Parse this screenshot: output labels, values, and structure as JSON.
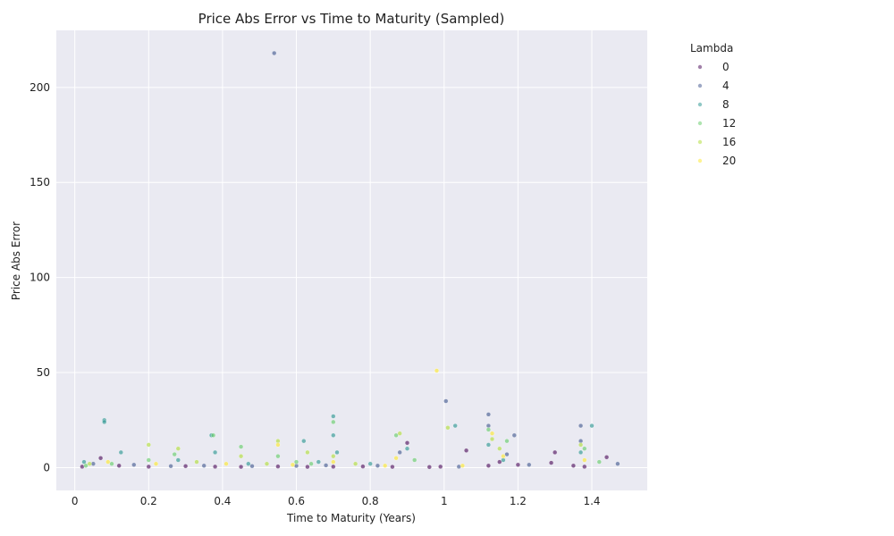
{
  "chart_data": {
    "type": "scatter",
    "title": "Price Abs Error vs Time to Maturity (Sampled)",
    "xlabel": "Time to Maturity (Years)",
    "ylabel": "Price Abs Error",
    "xlim": [
      -0.05,
      1.55
    ],
    "ylim": [
      -12,
      230
    ],
    "x_ticks": [
      0,
      0.2,
      0.4,
      0.6,
      0.8,
      1.0,
      1.2,
      1.4
    ],
    "x_tick_labels": [
      "0",
      "0.2",
      "0.4",
      "0.6",
      "0.8",
      "1",
      "1.2",
      "1.4"
    ],
    "y_ticks": [
      0,
      50,
      100,
      150,
      200
    ],
    "y_tick_labels": [
      "0",
      "50",
      "100",
      "150",
      "200"
    ],
    "grid": true,
    "legend": {
      "title": "Lambda",
      "placement": "outside-right",
      "entries": [
        {
          "label": "0",
          "color": "#440154"
        },
        {
          "label": "4",
          "color": "#3b528b"
        },
        {
          "label": "8",
          "color": "#21918c"
        },
        {
          "label": "12",
          "color": "#5ec962"
        },
        {
          "label": "16",
          "color": "#addc30"
        },
        {
          "label": "20",
          "color": "#fde725"
        }
      ]
    },
    "series": [
      {
        "lambda": 0,
        "color": "#440154",
        "points": [
          [
            0.02,
            0.5
          ],
          [
            0.07,
            5
          ],
          [
            0.12,
            1
          ],
          [
            0.2,
            0.5
          ],
          [
            0.3,
            0.8
          ],
          [
            0.38,
            0.5
          ],
          [
            0.45,
            0.4
          ],
          [
            0.55,
            0.6
          ],
          [
            0.63,
            0.4
          ],
          [
            0.7,
            0.5
          ],
          [
            0.78,
            0.6
          ],
          [
            0.86,
            0.4
          ],
          [
            0.9,
            13
          ],
          [
            0.96,
            0.3
          ],
          [
            0.99,
            0.5
          ],
          [
            1.06,
            9
          ],
          [
            1.12,
            1
          ],
          [
            1.15,
            3
          ],
          [
            1.2,
            1.5
          ],
          [
            1.29,
            2.5
          ],
          [
            1.3,
            8
          ],
          [
            1.35,
            1
          ],
          [
            1.38,
            0.5
          ],
          [
            1.44,
            5.5
          ]
        ]
      },
      {
        "lambda": 4,
        "color": "#3b528b",
        "points": [
          [
            0.54,
            218
          ],
          [
            1.005,
            35
          ],
          [
            0.05,
            2
          ],
          [
            0.16,
            1.5
          ],
          [
            0.26,
            0.8
          ],
          [
            0.35,
            1
          ],
          [
            0.48,
            0.8
          ],
          [
            0.6,
            0.9
          ],
          [
            0.68,
            1.2
          ],
          [
            0.82,
            1
          ],
          [
            0.88,
            8
          ],
          [
            1.04,
            0.5
          ],
          [
            1.12,
            28
          ],
          [
            1.12,
            22
          ],
          [
            1.17,
            7
          ],
          [
            1.19,
            17
          ],
          [
            1.23,
            1.5
          ],
          [
            1.37,
            22
          ],
          [
            1.37,
            14
          ],
          [
            1.47,
            2
          ]
        ]
      },
      {
        "lambda": 8,
        "color": "#21918c",
        "points": [
          [
            0.08,
            25
          ],
          [
            0.08,
            24
          ],
          [
            0.125,
            8
          ],
          [
            0.37,
            17
          ],
          [
            0.38,
            8
          ],
          [
            0.62,
            14
          ],
          [
            0.7,
            27
          ],
          [
            0.7,
            17
          ],
          [
            0.71,
            8
          ],
          [
            0.9,
            10
          ],
          [
            1.03,
            22
          ],
          [
            1.12,
            12
          ],
          [
            1.4,
            22
          ],
          [
            0.025,
            3
          ],
          [
            0.28,
            4
          ],
          [
            0.47,
            2
          ],
          [
            0.66,
            3
          ],
          [
            0.8,
            2
          ],
          [
            1.16,
            4
          ],
          [
            1.37,
            8
          ]
        ]
      },
      {
        "lambda": 12,
        "color": "#5ec962",
        "points": [
          [
            0.375,
            17
          ],
          [
            0.55,
            6
          ],
          [
            0.6,
            3
          ],
          [
            0.7,
            24
          ],
          [
            0.87,
            17
          ],
          [
            1.12,
            20
          ],
          [
            1.17,
            14
          ],
          [
            1.38,
            10
          ],
          [
            0.03,
            1
          ],
          [
            0.1,
            2
          ],
          [
            0.2,
            4
          ],
          [
            0.27,
            7
          ],
          [
            0.45,
            11
          ],
          [
            0.64,
            2
          ],
          [
            0.92,
            4
          ],
          [
            1.42,
            3
          ]
        ]
      },
      {
        "lambda": 16,
        "color": "#addc30",
        "points": [
          [
            0.2,
            12
          ],
          [
            0.28,
            10
          ],
          [
            0.45,
            6
          ],
          [
            0.55,
            14
          ],
          [
            0.63,
            8
          ],
          [
            0.7,
            6
          ],
          [
            0.88,
            18
          ],
          [
            1.13,
            15
          ],
          [
            1.15,
            10
          ],
          [
            1.37,
            12
          ],
          [
            0.04,
            2
          ],
          [
            0.33,
            3
          ],
          [
            0.52,
            2
          ],
          [
            0.76,
            2
          ],
          [
            1.01,
            21
          ]
        ]
      },
      {
        "lambda": 20,
        "color": "#fde725",
        "points": [
          [
            0.98,
            51
          ],
          [
            0.55,
            12
          ],
          [
            0.7,
            3
          ],
          [
            0.87,
            5
          ],
          [
            1.13,
            18
          ],
          [
            1.16,
            6
          ],
          [
            1.38,
            4
          ],
          [
            0.09,
            3
          ],
          [
            0.22,
            2
          ],
          [
            0.41,
            2
          ],
          [
            0.59,
            1.5
          ],
          [
            0.84,
            1
          ],
          [
            1.05,
            1
          ]
        ]
      }
    ]
  }
}
